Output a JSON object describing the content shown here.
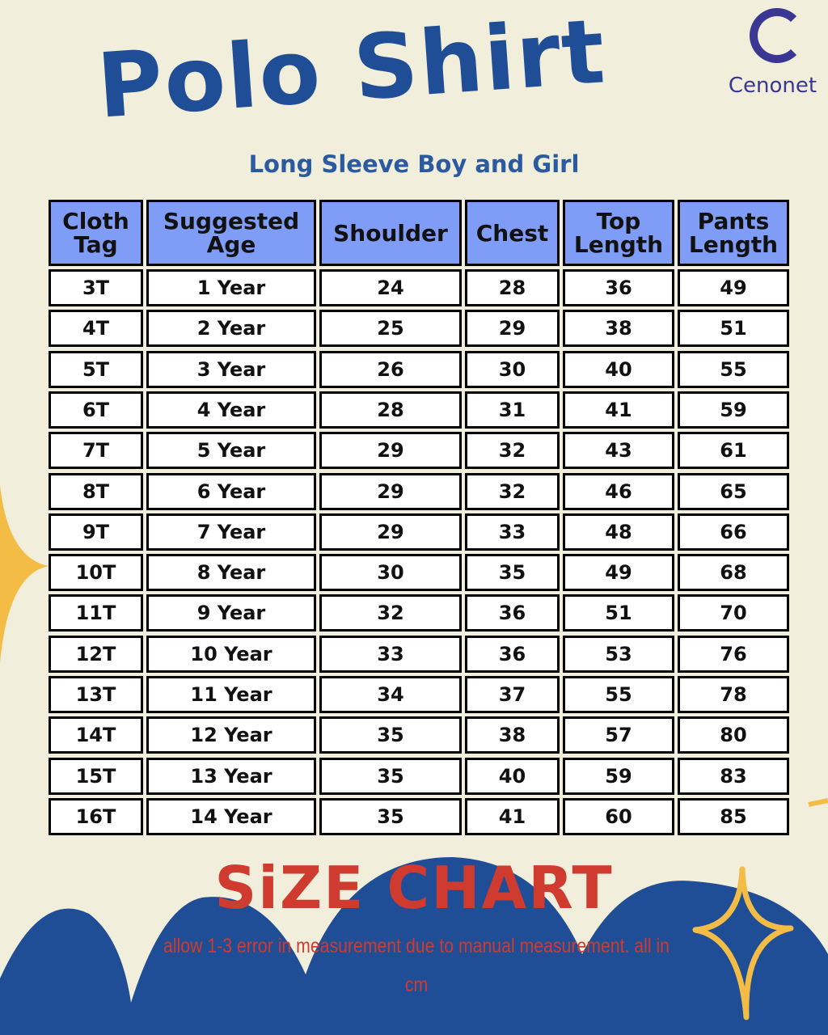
{
  "title": "Polo Shirt",
  "subtitle": "Long Sleeve Boy and Girl",
  "brand": "Cenonet",
  "colors": {
    "background": "#f1eedb",
    "title": "#1f4e96",
    "header": "#7f9cf7",
    "accent_red": "#cf3b2f",
    "star": "#f3bd45",
    "wave": "#1f4e96"
  },
  "table": {
    "headers": [
      "Cloth Tag",
      "Suggested Age",
      "Shoulder",
      "Chest",
      "Top Length",
      "Pants Length"
    ],
    "rows": [
      [
        "3T",
        "1 Year",
        "24",
        "28",
        "36",
        "49"
      ],
      [
        "4T",
        "2 Year",
        "25",
        "29",
        "38",
        "51"
      ],
      [
        "5T",
        "3 Year",
        "26",
        "30",
        "40",
        "55"
      ],
      [
        "6T",
        "4 Year",
        "28",
        "31",
        "41",
        "59"
      ],
      [
        "7T",
        "5 Year",
        "29",
        "32",
        "43",
        "61"
      ],
      [
        "8T",
        "6 Year",
        "29",
        "32",
        "46",
        "65"
      ],
      [
        "9T",
        "7 Year",
        "29",
        "33",
        "48",
        "66"
      ],
      [
        "10T",
        "8 Year",
        "30",
        "35",
        "49",
        "68"
      ],
      [
        "11T",
        "9 Year",
        "32",
        "36",
        "51",
        "70"
      ],
      [
        "12T",
        "10 Year",
        "33",
        "36",
        "53",
        "76"
      ],
      [
        "13T",
        "11 Year",
        "34",
        "37",
        "55",
        "78"
      ],
      [
        "14T",
        "12 Year",
        "35",
        "38",
        "57",
        "80"
      ],
      [
        "15T",
        "13 Year",
        "35",
        "40",
        "59",
        "83"
      ],
      [
        "16T",
        "14 Year",
        "35",
        "41",
        "60",
        "85"
      ]
    ]
  },
  "footer": {
    "title": "SiZE CHART",
    "note": "allow 1-3 error in measurement due to manual measurement. all in cm"
  }
}
